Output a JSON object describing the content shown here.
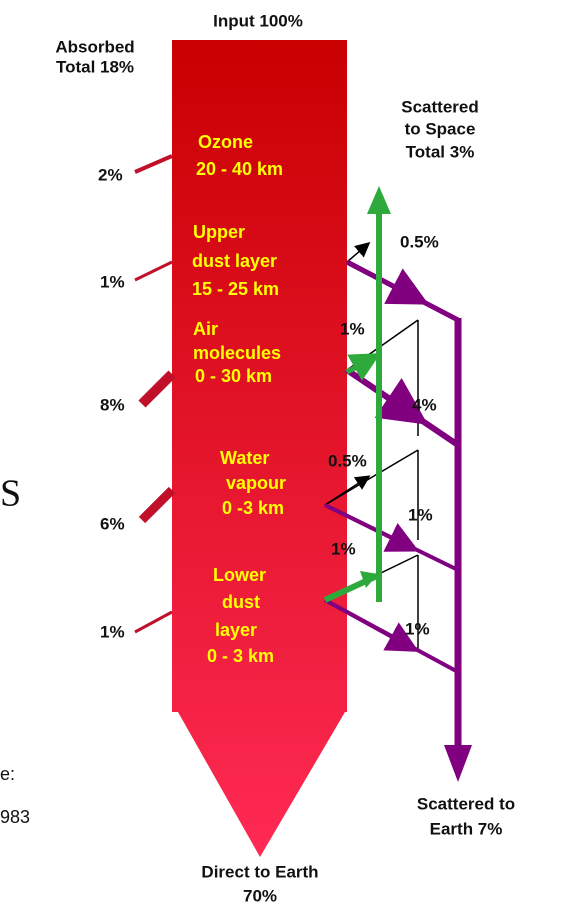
{
  "input": "Input 100%",
  "absorbed_total": [
    "Absorbed",
    "Total 18%"
  ],
  "scattered_space_total": [
    "Scattered",
    "to Space",
    "Total 3%"
  ],
  "layers": [
    {
      "name": [
        "Ozone",
        "20 - 40 km"
      ],
      "absorbed": "2%"
    },
    {
      "name": [
        "Upper",
        "dust layer",
        "15 - 25 km"
      ],
      "absorbed": "1%",
      "to_space": "0.5%"
    },
    {
      "name": [
        "Air",
        "molecules",
        "0 - 30 km"
      ],
      "absorbed": "8%",
      "to_space": "1%",
      "to_earth": "4%"
    },
    {
      "name": [
        "Water",
        "vapour",
        "0 -3 km"
      ],
      "absorbed": "6%",
      "to_space": "0.5%",
      "to_earth": "1%"
    },
    {
      "name": [
        "Lower",
        "dust",
        "layer",
        "0 - 3 km"
      ],
      "absorbed": "1%",
      "to_space": "1%",
      "to_earth": "1%"
    }
  ],
  "direct": [
    "Direct to Earth",
    "70%"
  ],
  "scattered_earth_total": [
    "Scattered to",
    "Earth 7%"
  ],
  "edge_fragments": [
    "S",
    "e:",
    "983"
  ]
}
